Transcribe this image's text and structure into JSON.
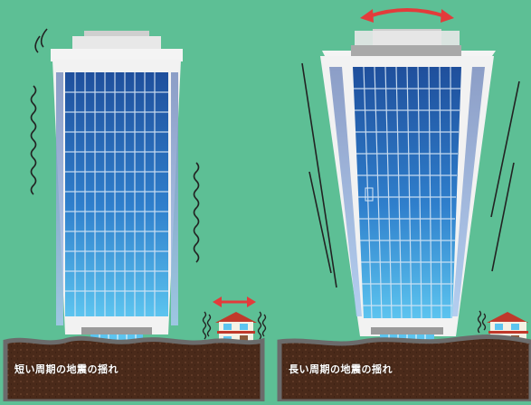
{
  "captions": {
    "left": "短い周期の地震の揺れ",
    "right": "長い周期の地震の揺れ"
  },
  "colors": {
    "background": "#5dbf95",
    "soil": "#4a2a1a",
    "soil_edge": "#6b6b6b",
    "glass_top": "#1f4f9c",
    "glass_bottom": "#5cc4ef",
    "facade": "#f2f2f2",
    "arrow": "#e33b3b",
    "sway_lines": "#222222"
  },
  "icons": {
    "arrow": "double-headed-arrow-icon",
    "vibration": "vibration-lines-icon",
    "house": "house-icon"
  }
}
